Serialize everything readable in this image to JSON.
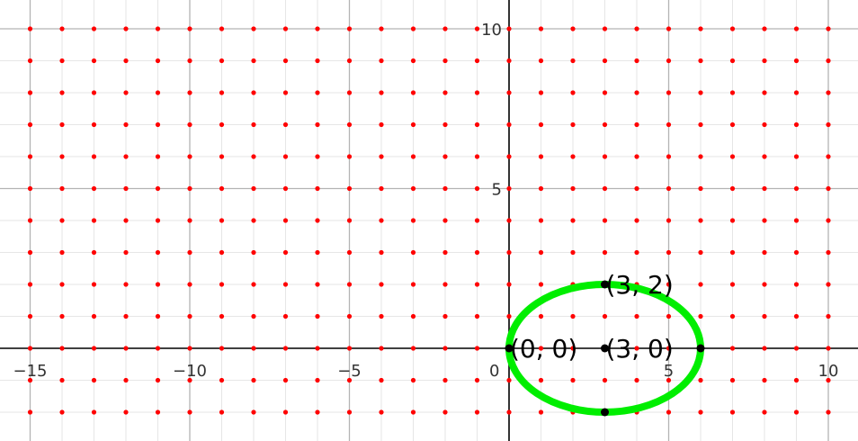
{
  "chart_data": {
    "type": "scatter",
    "xlim": [
      -16,
      11
    ],
    "ylim": [
      -3,
      11
    ],
    "grid": true,
    "minor_grid": true,
    "x_ticks": [
      -15,
      -10,
      -5,
      0,
      5,
      10
    ],
    "x_tick_labels": [
      "−15",
      "−10",
      "−5",
      "0",
      "5",
      "10"
    ],
    "y_ticks": [
      5,
      10
    ],
    "y_tick_labels": [
      "5",
      "10"
    ],
    "lattice_dots": {
      "x_from": -15,
      "x_to": 10,
      "y_from": -2,
      "y_to": 10,
      "step": 1,
      "color": "#ff0000"
    },
    "ellipse": {
      "cx": 3,
      "cy": 0,
      "rx": 3,
      "ry": 2,
      "color": "#00ee00"
    },
    "points": [
      {
        "x": 0,
        "y": 0,
        "label": "(0, 0)"
      },
      {
        "x": 3,
        "y": 0,
        "label": "(3, 0)"
      },
      {
        "x": 3,
        "y": 2,
        "label": "(3, 2)"
      },
      {
        "x": 6,
        "y": 0,
        "label": ""
      },
      {
        "x": 3,
        "y": -2,
        "label": ""
      }
    ]
  },
  "colors": {
    "major_grid": "#b4b4b4",
    "minor_grid": "#e6e6e6",
    "axis": "#000000",
    "point": "#000000"
  }
}
